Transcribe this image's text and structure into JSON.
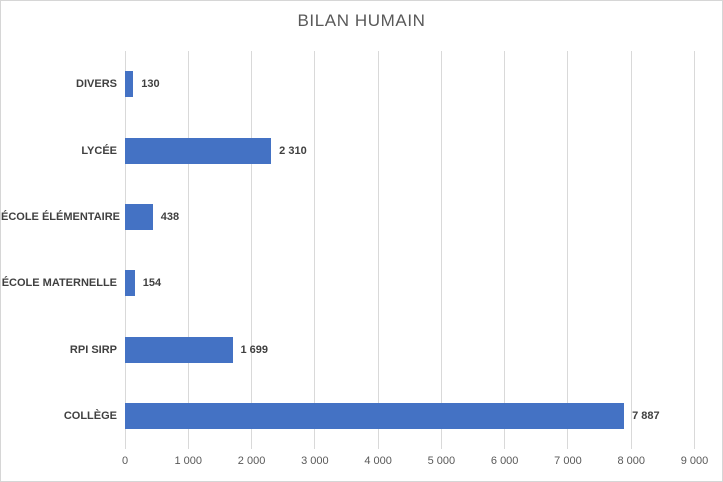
{
  "chart_data": {
    "type": "bar",
    "orientation": "horizontal",
    "title": "BILAN HUMAIN",
    "categories": [
      "DIVERS",
      "LYCÉE",
      "ÉCOLE ÉLÉMENTAIRE",
      "ÉCOLE MATERNELLE",
      "RPI SIRP",
      "COLLÈGE"
    ],
    "values": [
      130,
      2310,
      438,
      154,
      1699,
      7887
    ],
    "data_labels": [
      "130",
      "2 310",
      "438",
      "154",
      "1 699",
      "7 887"
    ],
    "xlabel": "",
    "ylabel": "",
    "xlim": [
      0,
      9000
    ],
    "x_ticks": [
      0,
      1000,
      2000,
      3000,
      4000,
      5000,
      6000,
      7000,
      8000,
      9000
    ],
    "x_tick_labels": [
      "0",
      "1 000",
      "2 000",
      "3 000",
      "4 000",
      "5 000",
      "6 000",
      "7 000",
      "8 000",
      "9 000"
    ],
    "grid": true,
    "legend": "none",
    "colors": {
      "bar": "#4472C4",
      "gridline": "#D9D9D9",
      "chart_border": "#D6D6D6",
      "title_text": "#595959",
      "axis_tick_text": "#595959",
      "label_text": "#404040",
      "background": "#FFFFFF"
    }
  }
}
